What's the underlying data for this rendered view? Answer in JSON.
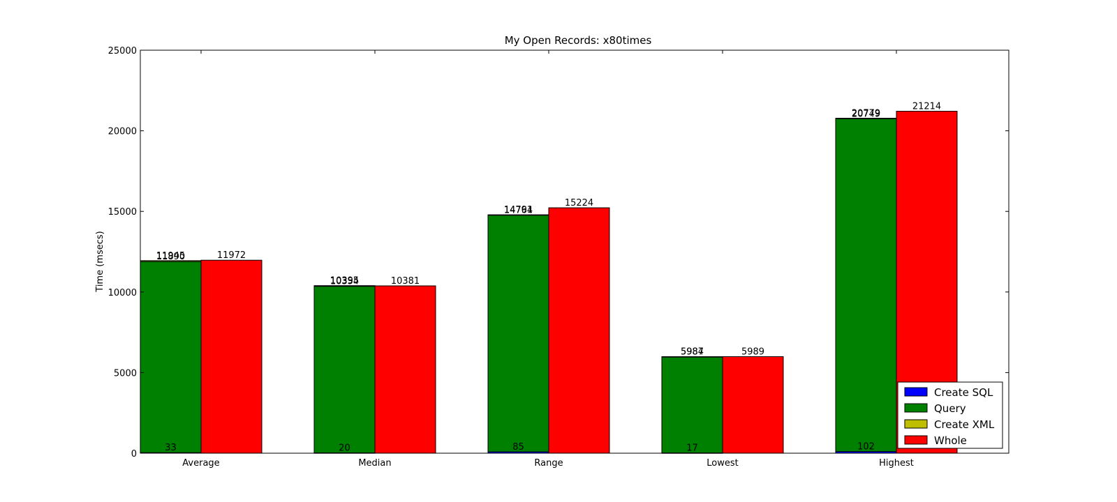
{
  "chart_data": {
    "type": "bar",
    "title": "My Open Records: x80times",
    "xlabel": "",
    "ylabel": "Time (msecs)",
    "ylim": [
      0,
      25000
    ],
    "yticks": [
      0,
      5000,
      10000,
      15000,
      20000,
      25000
    ],
    "categories": [
      "Average",
      "Median",
      "Range",
      "Lowest",
      "Highest"
    ],
    "stacked_series": [
      {
        "name": "Create SQL",
        "color": "#0000ff",
        "values": [
          33,
          20,
          85,
          17,
          102
        ],
        "labels": [
          "33",
          "20",
          "85",
          "17",
          "102"
        ]
      },
      {
        "name": "Query",
        "color": "#008000",
        "values": [
          11857,
          10334,
          14679,
          5967,
          20647
        ],
        "labels": [
          "11890",
          "10354",
          "14764",
          "5984",
          "20749"
        ]
      },
      {
        "name": "Create XML",
        "color": "#bfbf00",
        "values": [
          55,
          41,
          27,
          3,
          30
        ],
        "labels": [
          "11945",
          "10395",
          "14791",
          "5987",
          "20779"
        ]
      }
    ],
    "whole_series": {
      "name": "Whole",
      "color": "#ff0000",
      "values": [
        11972,
        10381,
        15224,
        5989,
        21214
      ],
      "labels": [
        "11972",
        "10381",
        "15224",
        "5989",
        "21214"
      ]
    },
    "legend": {
      "placement": "lower-right",
      "entries": [
        {
          "label": "Create SQL",
          "color": "#0000ff"
        },
        {
          "label": "Query",
          "color": "#008000"
        },
        {
          "label": "Create XML",
          "color": "#bfbf00"
        },
        {
          "label": "Whole",
          "color": "#ff0000"
        }
      ]
    },
    "grid": false
  }
}
